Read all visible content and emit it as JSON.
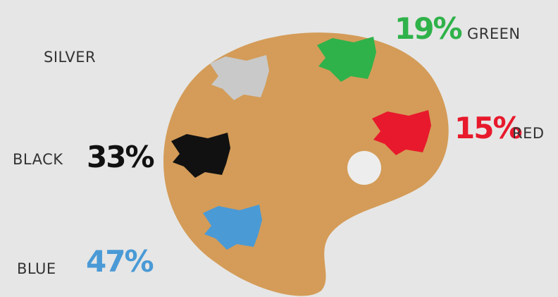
{
  "items": [
    {
      "name": "SILVER",
      "color": "#c9c9c9"
    },
    {
      "name": "GREEN",
      "percent": "19%",
      "color": "#2fb24a"
    },
    {
      "name": "RED",
      "percent": "15%",
      "color": "#e8192c"
    },
    {
      "name": "BLACK",
      "percent": "33%",
      "color": "#111111"
    },
    {
      "name": "BLUE",
      "percent": "47%",
      "color": "#4a9ad6"
    }
  ]
}
